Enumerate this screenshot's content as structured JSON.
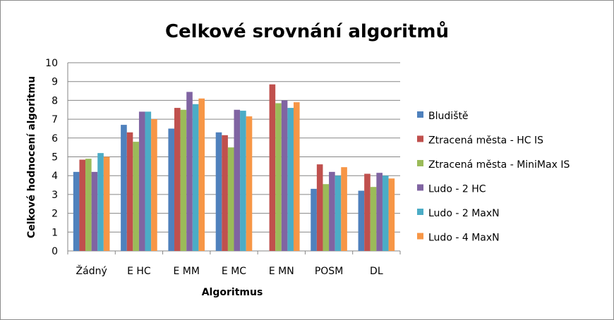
{
  "chart_data": {
    "type": "bar",
    "title": "Celkové srovnání algoritmů",
    "xlabel": "Algoritmus",
    "ylabel": "Celkové hodnocení algoritmu",
    "ylim": [
      0,
      10
    ],
    "yticks": [
      "0",
      "1",
      "2",
      "3",
      "4",
      "5",
      "6",
      "7",
      "8",
      "9",
      "10"
    ],
    "grid": "horizontal",
    "legend_position": "right",
    "categories": [
      "Žádný",
      "E HC",
      "E MM",
      "E MC",
      "E MN",
      "POSM",
      "DL"
    ],
    "series": [
      {
        "name": "Bludiště",
        "color": "#4F81BD",
        "values": [
          4.2,
          6.7,
          6.5,
          6.3,
          null,
          3.3,
          3.2
        ]
      },
      {
        "name": "Ztracená města - HC IS",
        "color": "#C0504D",
        "values": [
          4.85,
          6.3,
          7.6,
          6.15,
          8.85,
          4.6,
          4.1
        ]
      },
      {
        "name": "Ztracená města - MiniMax IS",
        "color": "#9BBB59",
        "values": [
          4.9,
          5.8,
          7.5,
          5.5,
          7.85,
          3.55,
          3.4
        ]
      },
      {
        "name": "Ludo - 2 HC",
        "color": "#8064A2",
        "values": [
          4.2,
          7.4,
          8.45,
          7.5,
          8.0,
          4.2,
          4.15
        ]
      },
      {
        "name": "Ludo - 2 MaxN",
        "color": "#4BACC6",
        "values": [
          5.2,
          7.4,
          7.8,
          7.45,
          7.6,
          4.0,
          4.0
        ]
      },
      {
        "name": "Ludo - 4 MaxN",
        "color": "#F79646",
        "values": [
          5.0,
          7.0,
          8.1,
          7.15,
          7.9,
          4.45,
          3.85
        ]
      }
    ]
  }
}
